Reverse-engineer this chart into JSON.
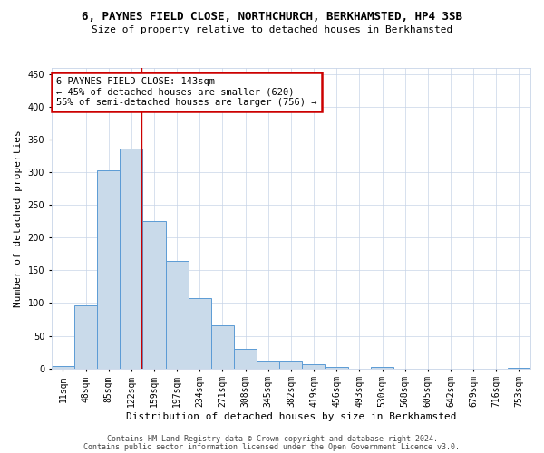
{
  "title": "6, PAYNES FIELD CLOSE, NORTHCHURCH, BERKHAMSTED, HP4 3SB",
  "subtitle": "Size of property relative to detached houses in Berkhamsted",
  "xlabel": "Distribution of detached houses by size in Berkhamsted",
  "ylabel": "Number of detached properties",
  "bins": [
    "11sqm",
    "48sqm",
    "85sqm",
    "122sqm",
    "159sqm",
    "197sqm",
    "234sqm",
    "271sqm",
    "308sqm",
    "345sqm",
    "382sqm",
    "419sqm",
    "456sqm",
    "493sqm",
    "530sqm",
    "568sqm",
    "605sqm",
    "642sqm",
    "679sqm",
    "716sqm",
    "753sqm"
  ],
  "values": [
    3,
    97,
    303,
    337,
    225,
    165,
    107,
    66,
    30,
    10,
    10,
    6,
    2,
    0,
    2,
    0,
    0,
    0,
    0,
    0,
    1
  ],
  "bar_color": "#c9daea",
  "bar_edge_color": "#5b9bd5",
  "property_line_x": 3.43,
  "annotation_text": "6 PAYNES FIELD CLOSE: 143sqm\n← 45% of detached houses are smaller (620)\n55% of semi-detached houses are larger (756) →",
  "annotation_box_color": "#ffffff",
  "annotation_box_edge": "#cc0000",
  "red_line_color": "#cc0000",
  "ylim": [
    0,
    460
  ],
  "yticks": [
    0,
    50,
    100,
    150,
    200,
    250,
    300,
    350,
    400,
    450
  ],
  "footer1": "Contains HM Land Registry data © Crown copyright and database right 2024.",
  "footer2": "Contains public sector information licensed under the Open Government Licence v3.0.",
  "bg_color": "#ffffff",
  "grid_color": "#c8d4e8",
  "title_fontsize": 9,
  "subtitle_fontsize": 8,
  "ylabel_fontsize": 8,
  "xlabel_fontsize": 8,
  "tick_fontsize": 7,
  "footer_fontsize": 6
}
